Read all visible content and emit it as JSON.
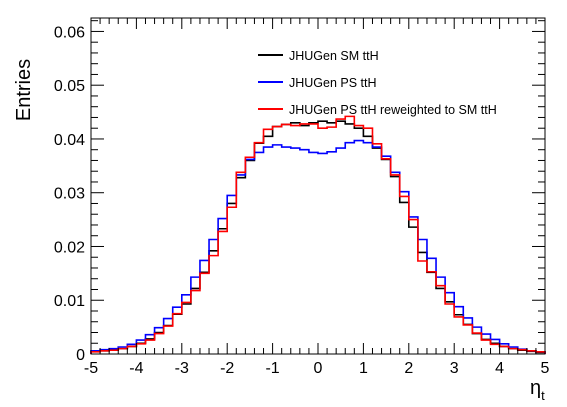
{
  "chart_data": {
    "type": "line",
    "style": "step-histogram",
    "xlabel": "η",
    "xlabel_subscript": "t",
    "ylabel": "Entries",
    "xlim": [
      -5,
      5
    ],
    "ylim": [
      0,
      0.0625
    ],
    "x_ticks": [
      -5,
      -4,
      -3,
      -2,
      -1,
      0,
      1,
      2,
      3,
      4,
      5
    ],
    "x_tick_labels": [
      "-5",
      "-4",
      "-3",
      "-2",
      "-1",
      "0",
      "1",
      "2",
      "3",
      "4",
      "5"
    ],
    "y_ticks": [
      0,
      0.01,
      0.02,
      0.03,
      0.04,
      0.05,
      0.06
    ],
    "y_tick_labels": [
      "0",
      "0.01",
      "0.02",
      "0.03",
      "0.04",
      "0.05",
      "0.06"
    ],
    "grid": false,
    "legend_position": "top-right",
    "bin_edges": [
      -5.0,
      -4.8,
      -4.6,
      -4.4,
      -4.2,
      -4.0,
      -3.8,
      -3.6,
      -3.4,
      -3.2,
      -3.0,
      -2.8,
      -2.6,
      -2.4,
      -2.2,
      -2.0,
      -1.8,
      -1.6,
      -1.4,
      -1.2,
      -1.0,
      -0.8,
      -0.6,
      -0.4,
      -0.2,
      0.0,
      0.2,
      0.4,
      0.6,
      0.8,
      1.0,
      1.2,
      1.4,
      1.6,
      1.8,
      2.0,
      2.2,
      2.4,
      2.6,
      2.8,
      3.0,
      3.2,
      3.4,
      3.6,
      3.8,
      4.0,
      4.2,
      4.4,
      4.6,
      4.8,
      5.0
    ],
    "series": [
      {
        "name": "JHUGen SM ttH",
        "color": "#000000",
        "values": [
          0.0005,
          0.0006,
          0.0008,
          0.001,
          0.0014,
          0.002,
          0.0028,
          0.004,
          0.0053,
          0.0074,
          0.0093,
          0.0122,
          0.0152,
          0.0192,
          0.0233,
          0.028,
          0.0328,
          0.036,
          0.0392,
          0.0405,
          0.0423,
          0.0427,
          0.043,
          0.0425,
          0.043,
          0.0433,
          0.043,
          0.0433,
          0.0428,
          0.042,
          0.0405,
          0.0383,
          0.0362,
          0.033,
          0.0282,
          0.0236,
          0.0189,
          0.0152,
          0.0122,
          0.0097,
          0.0073,
          0.0055,
          0.0038,
          0.0027,
          0.002,
          0.0014,
          0.001,
          0.0007,
          0.0005,
          0.0003
        ]
      },
      {
        "name": "JHUGen PS ttH",
        "color": "#0000ff",
        "values": [
          0.0006,
          0.0008,
          0.001,
          0.0013,
          0.0018,
          0.0026,
          0.0036,
          0.0049,
          0.0066,
          0.0087,
          0.011,
          0.0143,
          0.0174,
          0.0213,
          0.0252,
          0.0295,
          0.0333,
          0.0362,
          0.0375,
          0.0385,
          0.0389,
          0.0385,
          0.0383,
          0.038,
          0.0375,
          0.0373,
          0.0376,
          0.0383,
          0.0393,
          0.0397,
          0.0393,
          0.0385,
          0.0368,
          0.0338,
          0.0302,
          0.0255,
          0.0213,
          0.0178,
          0.0143,
          0.0114,
          0.0088,
          0.0067,
          0.005,
          0.0037,
          0.0027,
          0.0019,
          0.0013,
          0.0009,
          0.0006,
          0.0004
        ]
      },
      {
        "name": "JHUGen PS ttH reweighted to SM ttH",
        "color": "#ff0000",
        "values": [
          0.0004,
          0.0006,
          0.0007,
          0.001,
          0.0014,
          0.0019,
          0.0026,
          0.0038,
          0.0052,
          0.0075,
          0.0096,
          0.0118,
          0.015,
          0.0183,
          0.0228,
          0.0273,
          0.0338,
          0.0366,
          0.0393,
          0.0418,
          0.0423,
          0.0427,
          0.0425,
          0.0428,
          0.0428,
          0.042,
          0.0422,
          0.0437,
          0.0442,
          0.0425,
          0.042,
          0.0391,
          0.0363,
          0.0333,
          0.0293,
          0.025,
          0.0173,
          0.0153,
          0.0127,
          0.0093,
          0.0069,
          0.0054,
          0.0039,
          0.0026,
          0.0018,
          0.0014,
          0.001,
          0.0008,
          0.0006,
          0.0004
        ]
      }
    ]
  }
}
